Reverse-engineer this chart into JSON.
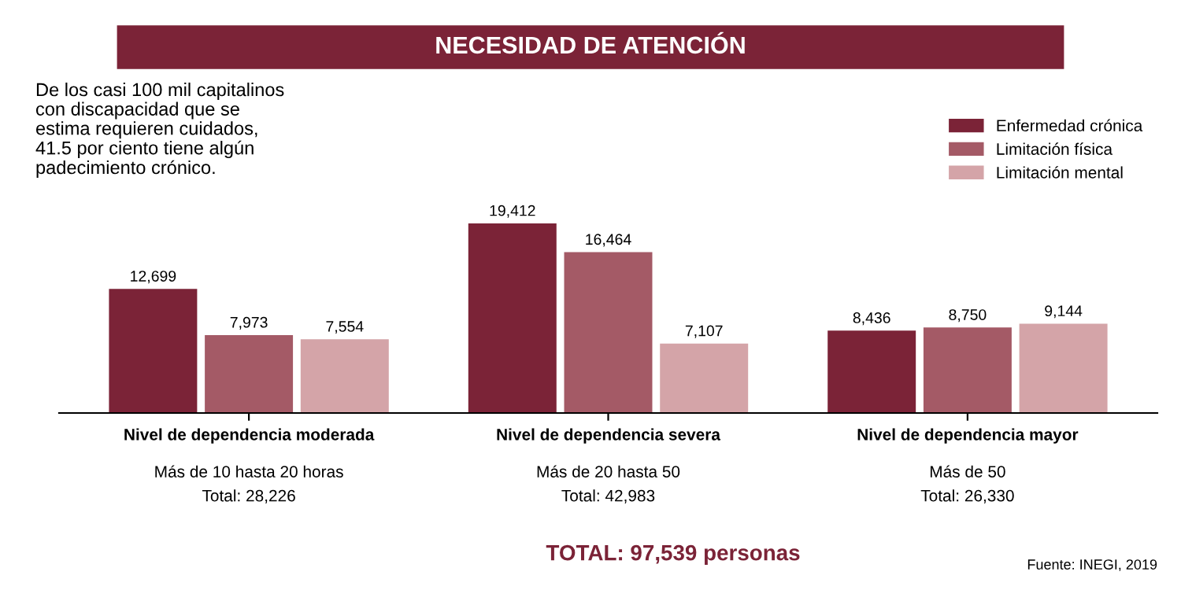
{
  "chart_data": {
    "type": "bar",
    "title": "NECESIDAD DE ATENCIÓN",
    "subtitle": "De los casi 100 mil capitalinos\ncon discapacidad que se\nestima requieren cuidados,\n41.5 por ciento tiene algún\npadecimiento crónico.",
    "categories": [
      "Nivel de dependencia moderada",
      "Nivel de dependencia severa",
      "Nivel de dependencia mayor"
    ],
    "series": [
      {
        "name": "Enfermedad crónica",
        "color": "#7b2337",
        "values": [
          12699,
          19412,
          8436
        ],
        "value_labels": [
          "12,699",
          "19,412",
          "8,436"
        ]
      },
      {
        "name": "Limitación física",
        "color": "#a45a66",
        "values": [
          7973,
          16464,
          8750
        ],
        "value_labels": [
          "7,973",
          "16,464",
          "8,750"
        ]
      },
      {
        "name": "Limitación mental",
        "color": "#d4a4a8",
        "values": [
          7554,
          7107,
          9144
        ],
        "value_labels": [
          "7,554",
          "7,107",
          "9,144"
        ]
      }
    ],
    "annotations": [
      "Más de 10 hasta 20 horas",
      "Más de 20 hasta 50",
      "Más de 50",
      "Total: 28,226",
      "Total: 42,983",
      "Total: 26,330",
      "TOTAL: 97,539 personas",
      "Fuente: INEGI, 2019"
    ],
    "legend": "top right",
    "grid": false
  }
}
